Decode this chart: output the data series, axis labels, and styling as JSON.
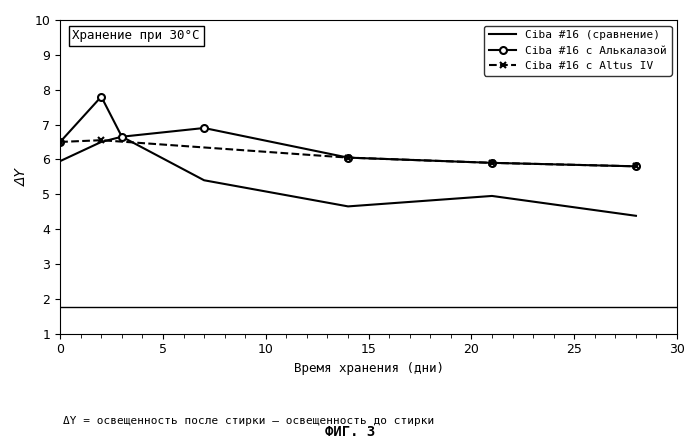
{
  "title_box": "Хранение при 30°C",
  "xlabel": "Время хранения (дни)",
  "ylabel": "ΔY",
  "caption": "ΔY = освещенность после стирки – освещенность до стирки",
  "fig_label": "ФИГ. 3",
  "xlim": [
    0,
    30
  ],
  "ylim": [
    1,
    10
  ],
  "xticks": [
    0,
    5,
    10,
    15,
    20,
    25,
    30
  ],
  "yticks": [
    1,
    2,
    3,
    4,
    5,
    6,
    7,
    8,
    9,
    10
  ],
  "series": [
    {
      "label": "Ciba #16 (сравнение)",
      "x": [
        0,
        2,
        3,
        7,
        14,
        21,
        28
      ],
      "y": [
        5.95,
        6.5,
        6.65,
        5.4,
        4.65,
        4.95,
        4.38
      ],
      "color": "#000000",
      "linestyle": "-",
      "marker": null,
      "linewidth": 1.5
    },
    {
      "label": "Ciba #16 с Алькалазой",
      "x": [
        0,
        2,
        3,
        7,
        14,
        21,
        28
      ],
      "y": [
        6.5,
        7.8,
        6.65,
        6.9,
        6.05,
        5.9,
        5.8
      ],
      "color": "#000000",
      "linestyle": "-",
      "marker": "o",
      "linewidth": 1.5
    },
    {
      "label": "Ciba #16 с Altus IV",
      "x": [
        0,
        2,
        14,
        21,
        28
      ],
      "y": [
        6.5,
        6.55,
        6.05,
        5.9,
        5.8
      ],
      "color": "#000000",
      "linestyle": "--",
      "marker": "x",
      "linewidth": 1.5
    }
  ],
  "hline_y": 1.75,
  "hline_color": "#000000",
  "hline_linestyle": "-",
  "background_color": "#ffffff"
}
